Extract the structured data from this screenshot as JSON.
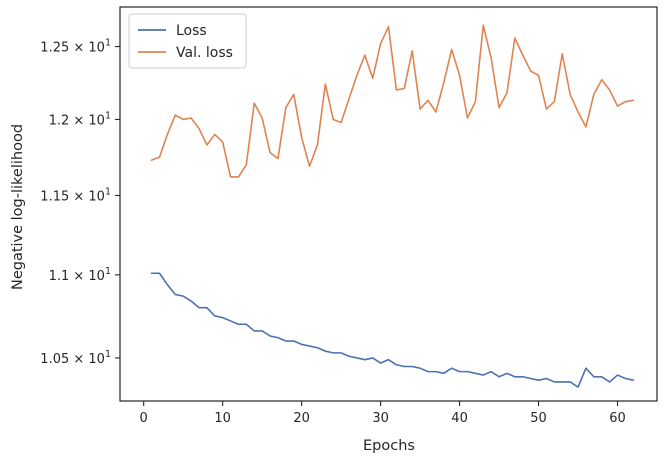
{
  "chart_data": {
    "type": "line",
    "xlabel": "Epochs",
    "ylabel": "Negative log-likelihood",
    "xlim": [
      -3,
      65
    ],
    "ylim": [
      10.25,
      12.78
    ],
    "y_scale": "log",
    "grid": false,
    "legend_position": "top-left",
    "x_ticks": [
      0,
      10,
      20,
      30,
      40,
      50,
      60
    ],
    "x_tick_labels": [
      "0",
      "10",
      "20",
      "30",
      "40",
      "50",
      "60"
    ],
    "y_ticks": [
      10.5,
      11.0,
      11.5,
      12.0,
      12.5
    ],
    "y_tick_labels": [
      {
        "base": "1.05",
        "times": "×",
        "ten": "10",
        "exp": "1"
      },
      {
        "base": "1.1",
        "times": "×",
        "ten": "10",
        "exp": "1"
      },
      {
        "base": "1.15",
        "times": "×",
        "ten": "10",
        "exp": "1"
      },
      {
        "base": "1.2",
        "times": "×",
        "ten": "10",
        "exp": "1"
      },
      {
        "base": "1.25",
        "times": "×",
        "ten": "10",
        "exp": "1"
      }
    ],
    "x": [
      1,
      2,
      3,
      4,
      5,
      6,
      7,
      8,
      9,
      10,
      11,
      12,
      13,
      14,
      15,
      16,
      17,
      18,
      19,
      20,
      21,
      22,
      23,
      24,
      25,
      26,
      27,
      28,
      29,
      30,
      31,
      32,
      33,
      34,
      35,
      36,
      37,
      38,
      39,
      40,
      41,
      42,
      43,
      44,
      45,
      46,
      47,
      48,
      49,
      50,
      51,
      52,
      53,
      54,
      55,
      56,
      57,
      58,
      59,
      60,
      61,
      62
    ],
    "series": [
      {
        "name": "Loss",
        "color": "#4c72b0",
        "values": [
          11.01,
          11.01,
          10.94,
          10.88,
          10.87,
          10.84,
          10.8,
          10.8,
          10.75,
          10.74,
          10.72,
          10.7,
          10.7,
          10.66,
          10.66,
          10.63,
          10.62,
          10.6,
          10.6,
          10.58,
          10.57,
          10.56,
          10.54,
          10.53,
          10.53,
          10.51,
          10.5,
          10.49,
          10.5,
          10.47,
          10.49,
          10.46,
          10.45,
          10.45,
          10.44,
          10.42,
          10.42,
          10.41,
          10.44,
          10.42,
          10.42,
          10.41,
          10.4,
          10.42,
          10.39,
          10.41,
          10.39,
          10.39,
          10.38,
          10.37,
          10.38,
          10.36,
          10.36,
          10.36,
          10.33,
          10.44,
          10.39,
          10.39,
          10.36,
          10.4,
          10.38,
          10.37
        ]
      },
      {
        "name": "Val. loss",
        "color": "#dd8452",
        "values": [
          11.73,
          11.75,
          11.9,
          12.03,
          12.0,
          12.01,
          11.94,
          11.83,
          11.9,
          11.85,
          11.62,
          11.62,
          11.7,
          12.11,
          12.01,
          11.78,
          11.74,
          12.08,
          12.17,
          11.88,
          11.69,
          11.83,
          12.24,
          12.0,
          11.98,
          12.14,
          12.3,
          12.44,
          12.28,
          12.52,
          12.64,
          12.2,
          12.21,
          12.47,
          12.07,
          12.13,
          12.05,
          12.25,
          12.48,
          12.3,
          12.01,
          12.12,
          12.65,
          12.42,
          12.08,
          12.18,
          12.56,
          12.44,
          12.33,
          12.3,
          12.07,
          12.12,
          12.45,
          12.17,
          12.05,
          11.95,
          12.17,
          12.27,
          12.2,
          12.09,
          12.12,
          12.13
        ]
      }
    ]
  }
}
